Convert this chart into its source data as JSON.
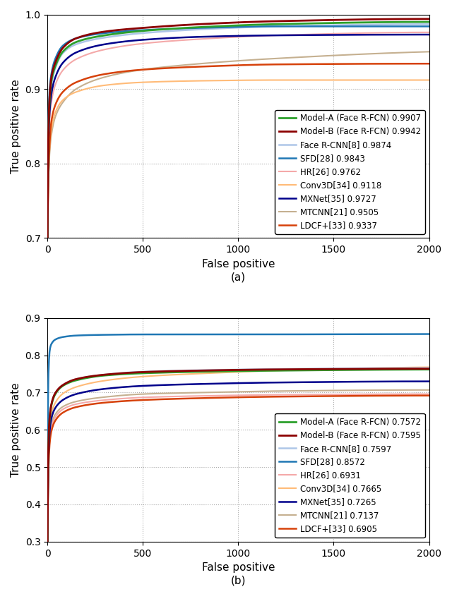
{
  "fig_width": 6.4,
  "fig_height": 8.42,
  "dpi": 100,
  "plot_a": {
    "xlim": [
      0,
      2000
    ],
    "ylim": [
      0.7,
      1.0
    ],
    "xlabel": "False positive",
    "ylabel": "True positive rate",
    "yticks": [
      0.7,
      0.8,
      0.9,
      1.0
    ],
    "xticks": [
      0,
      500,
      1000,
      1500,
      2000
    ],
    "label_a": "(a)",
    "series": [
      {
        "label": "Model-A (Face R-FCN) 0.9907",
        "color": "#2ca02c",
        "lw": 2.0,
        "zorder": 9,
        "points": [
          [
            0,
            0.7
          ],
          [
            2,
            0.78
          ],
          [
            5,
            0.84
          ],
          [
            10,
            0.88
          ],
          [
            20,
            0.91
          ],
          [
            40,
            0.93
          ],
          [
            80,
            0.95
          ],
          [
            150,
            0.963
          ],
          [
            300,
            0.972
          ],
          [
            500,
            0.978
          ],
          [
            800,
            0.983
          ],
          [
            1200,
            0.987
          ],
          [
            2000,
            0.99
          ]
        ]
      },
      {
        "label": "Model-B (Face R-FCN) 0.9942",
        "color": "#8b0000",
        "lw": 2.0,
        "zorder": 10,
        "points": [
          [
            0,
            0.7
          ],
          [
            2,
            0.78
          ],
          [
            5,
            0.845
          ],
          [
            10,
            0.885
          ],
          [
            20,
            0.915
          ],
          [
            40,
            0.935
          ],
          [
            80,
            0.955
          ],
          [
            150,
            0.968
          ],
          [
            300,
            0.977
          ],
          [
            500,
            0.982
          ],
          [
            800,
            0.987
          ],
          [
            1200,
            0.991
          ],
          [
            2000,
            0.994
          ]
        ]
      },
      {
        "label": "Face R-CNN[8] 0.9874",
        "color": "#aec6e8",
        "lw": 1.8,
        "zorder": 7,
        "points": [
          [
            0,
            0.7
          ],
          [
            2,
            0.78
          ],
          [
            5,
            0.84
          ],
          [
            10,
            0.875
          ],
          [
            20,
            0.905
          ],
          [
            40,
            0.927
          ],
          [
            80,
            0.948
          ],
          [
            150,
            0.96
          ],
          [
            300,
            0.969
          ],
          [
            500,
            0.975
          ],
          [
            800,
            0.98
          ],
          [
            1200,
            0.984
          ],
          [
            2000,
            0.987
          ]
        ]
      },
      {
        "label": "SFD[28] 0.9843",
        "color": "#1f77b4",
        "lw": 1.8,
        "zorder": 8,
        "points": [
          [
            0,
            0.7
          ],
          [
            2,
            0.8
          ],
          [
            5,
            0.86
          ],
          [
            10,
            0.895
          ],
          [
            20,
            0.92
          ],
          [
            40,
            0.94
          ],
          [
            80,
            0.958
          ],
          [
            150,
            0.968
          ],
          [
            300,
            0.975
          ],
          [
            500,
            0.979
          ],
          [
            800,
            0.982
          ],
          [
            1200,
            0.984
          ],
          [
            2000,
            0.984
          ]
        ]
      },
      {
        "label": "HR[26] 0.9762",
        "color": "#f4a9a9",
        "lw": 1.5,
        "zorder": 6,
        "points": [
          [
            0,
            0.7
          ],
          [
            2,
            0.76
          ],
          [
            5,
            0.82
          ],
          [
            10,
            0.855
          ],
          [
            20,
            0.882
          ],
          [
            40,
            0.905
          ],
          [
            80,
            0.925
          ],
          [
            150,
            0.94
          ],
          [
            300,
            0.953
          ],
          [
            500,
            0.961
          ],
          [
            800,
            0.967
          ],
          [
            1200,
            0.972
          ],
          [
            2000,
            0.976
          ]
        ]
      },
      {
        "label": "Conv3D[34] 0.9118",
        "color": "#ffbb78",
        "lw": 1.5,
        "zorder": 5,
        "points": [
          [
            0,
            0.7
          ],
          [
            2,
            0.74
          ],
          [
            5,
            0.78
          ],
          [
            10,
            0.815
          ],
          [
            20,
            0.845
          ],
          [
            40,
            0.868
          ],
          [
            80,
            0.885
          ],
          [
            150,
            0.896
          ],
          [
            300,
            0.905
          ],
          [
            500,
            0.909
          ],
          [
            800,
            0.911
          ],
          [
            1200,
            0.912
          ],
          [
            2000,
            0.912
          ]
        ]
      },
      {
        "label": "MXNet[35] 0.9727",
        "color": "#00008b",
        "lw": 1.8,
        "zorder": 8,
        "points": [
          [
            0,
            0.7
          ],
          [
            2,
            0.77
          ],
          [
            5,
            0.83
          ],
          [
            10,
            0.865
          ],
          [
            20,
            0.893
          ],
          [
            40,
            0.915
          ],
          [
            80,
            0.935
          ],
          [
            150,
            0.949
          ],
          [
            300,
            0.96
          ],
          [
            500,
            0.966
          ],
          [
            800,
            0.97
          ],
          [
            1200,
            0.972
          ],
          [
            2000,
            0.973
          ]
        ]
      },
      {
        "label": "MTCNN[21] 0.9505",
        "color": "#c5b090",
        "lw": 1.5,
        "zorder": 4,
        "points": [
          [
            0,
            0.7
          ],
          [
            2,
            0.74
          ],
          [
            5,
            0.78
          ],
          [
            10,
            0.81
          ],
          [
            20,
            0.838
          ],
          [
            40,
            0.862
          ],
          [
            80,
            0.882
          ],
          [
            150,
            0.9
          ],
          [
            300,
            0.916
          ],
          [
            500,
            0.926
          ],
          [
            800,
            0.934
          ],
          [
            1200,
            0.941
          ],
          [
            2000,
            0.95
          ]
        ]
      },
      {
        "label": "LDCF+[33] 0.9337",
        "color": "#d6410a",
        "lw": 1.8,
        "zorder": 7,
        "points": [
          [
            0,
            0.7
          ],
          [
            2,
            0.74
          ],
          [
            5,
            0.785
          ],
          [
            10,
            0.822
          ],
          [
            20,
            0.856
          ],
          [
            40,
            0.878
          ],
          [
            80,
            0.896
          ],
          [
            150,
            0.909
          ],
          [
            300,
            0.92
          ],
          [
            500,
            0.926
          ],
          [
            800,
            0.93
          ],
          [
            1200,
            0.933
          ],
          [
            2000,
            0.934
          ]
        ]
      }
    ]
  },
  "plot_b": {
    "xlim": [
      0,
      2000
    ],
    "ylim": [
      0.3,
      0.9
    ],
    "xlabel": "False positive",
    "ylabel": "True positive rate",
    "yticks": [
      0.3,
      0.4,
      0.5,
      0.6,
      0.7,
      0.8,
      0.9
    ],
    "xticks": [
      0,
      500,
      1000,
      1500,
      2000
    ],
    "label_b": "(b)",
    "series": [
      {
        "label": "Model-A (Face R-FCN) 0.7572",
        "color": "#2ca02c",
        "lw": 2.0,
        "zorder": 9,
        "points": [
          [
            0,
            0.3
          ],
          [
            2,
            0.45
          ],
          [
            5,
            0.555
          ],
          [
            10,
            0.62
          ],
          [
            20,
            0.665
          ],
          [
            40,
            0.695
          ],
          [
            80,
            0.718
          ],
          [
            150,
            0.733
          ],
          [
            300,
            0.746
          ],
          [
            500,
            0.752
          ],
          [
            800,
            0.756
          ],
          [
            1200,
            0.759
          ],
          [
            2000,
            0.762
          ]
        ]
      },
      {
        "label": "Model-B (Face R-FCN) 0.7595",
        "color": "#8b0000",
        "lw": 2.0,
        "zorder": 10,
        "points": [
          [
            0,
            0.3
          ],
          [
            2,
            0.45
          ],
          [
            5,
            0.558
          ],
          [
            10,
            0.625
          ],
          [
            20,
            0.668
          ],
          [
            40,
            0.698
          ],
          [
            80,
            0.72
          ],
          [
            150,
            0.736
          ],
          [
            300,
            0.748
          ],
          [
            500,
            0.755
          ],
          [
            800,
            0.759
          ],
          [
            1200,
            0.762
          ],
          [
            2000,
            0.764
          ]
        ]
      },
      {
        "label": "Face R-CNN[8] 0.7597",
        "color": "#aec6e8",
        "lw": 1.8,
        "zorder": 7,
        "points": [
          [
            0,
            0.3
          ],
          [
            2,
            0.45
          ],
          [
            5,
            0.558
          ],
          [
            10,
            0.624
          ],
          [
            20,
            0.667
          ],
          [
            40,
            0.697
          ],
          [
            80,
            0.72
          ],
          [
            150,
            0.736
          ],
          [
            300,
            0.748
          ],
          [
            500,
            0.756
          ],
          [
            800,
            0.76
          ],
          [
            1200,
            0.763
          ],
          [
            2000,
            0.766
          ]
        ]
      },
      {
        "label": "SFD[28] 0.8572",
        "color": "#1f77b4",
        "lw": 1.8,
        "zorder": 8,
        "points": [
          [
            0,
            0.3
          ],
          [
            1,
            0.5
          ],
          [
            2,
            0.62
          ],
          [
            3,
            0.69
          ],
          [
            5,
            0.75
          ],
          [
            8,
            0.79
          ],
          [
            12,
            0.815
          ],
          [
            20,
            0.83
          ],
          [
            40,
            0.842
          ],
          [
            80,
            0.849
          ],
          [
            150,
            0.853
          ],
          [
            300,
            0.855
          ],
          [
            500,
            0.856
          ],
          [
            800,
            0.856
          ],
          [
            2000,
            0.857
          ]
        ]
      },
      {
        "label": "HR[26] 0.6931",
        "color": "#f4a9a9",
        "lw": 1.5,
        "zorder": 6,
        "points": [
          [
            0,
            0.3
          ],
          [
            2,
            0.42
          ],
          [
            5,
            0.51
          ],
          [
            10,
            0.565
          ],
          [
            20,
            0.605
          ],
          [
            40,
            0.633
          ],
          [
            80,
            0.655
          ],
          [
            150,
            0.669
          ],
          [
            300,
            0.68
          ],
          [
            500,
            0.687
          ],
          [
            800,
            0.691
          ],
          [
            1200,
            0.694
          ],
          [
            2000,
            0.696
          ]
        ]
      },
      {
        "label": "Conv3D[34] 0.7665",
        "color": "#ffbb78",
        "lw": 1.5,
        "zorder": 5,
        "points": [
          [
            0,
            0.3
          ],
          [
            2,
            0.44
          ],
          [
            5,
            0.535
          ],
          [
            10,
            0.598
          ],
          [
            20,
            0.642
          ],
          [
            40,
            0.672
          ],
          [
            80,
            0.697
          ],
          [
            150,
            0.715
          ],
          [
            300,
            0.732
          ],
          [
            500,
            0.743
          ],
          [
            800,
            0.751
          ],
          [
            1200,
            0.759
          ],
          [
            2000,
            0.768
          ]
        ]
      },
      {
        "label": "MXNet[35] 0.7265",
        "color": "#00008b",
        "lw": 1.8,
        "zorder": 8,
        "points": [
          [
            0,
            0.3
          ],
          [
            2,
            0.43
          ],
          [
            5,
            0.525
          ],
          [
            10,
            0.588
          ],
          [
            20,
            0.63
          ],
          [
            40,
            0.658
          ],
          [
            80,
            0.68
          ],
          [
            150,
            0.696
          ],
          [
            300,
            0.71
          ],
          [
            500,
            0.718
          ],
          [
            800,
            0.723
          ],
          [
            1200,
            0.727
          ],
          [
            2000,
            0.73
          ]
        ]
      },
      {
        "label": "MTCNN[21] 0.7137",
        "color": "#c5b090",
        "lw": 1.5,
        "zorder": 4,
        "points": [
          [
            0,
            0.3
          ],
          [
            2,
            0.42
          ],
          [
            5,
            0.515
          ],
          [
            10,
            0.574
          ],
          [
            20,
            0.614
          ],
          [
            40,
            0.641
          ],
          [
            80,
            0.662
          ],
          [
            150,
            0.676
          ],
          [
            300,
            0.688
          ],
          [
            500,
            0.696
          ],
          [
            800,
            0.7
          ],
          [
            1200,
            0.704
          ],
          [
            2000,
            0.707
          ]
        ]
      },
      {
        "label": "LDCF+[33] 0.6905",
        "color": "#d6410a",
        "lw": 1.8,
        "zorder": 7,
        "points": [
          [
            0,
            0.3
          ],
          [
            2,
            0.41
          ],
          [
            5,
            0.495
          ],
          [
            10,
            0.555
          ],
          [
            20,
            0.596
          ],
          [
            40,
            0.624
          ],
          [
            80,
            0.646
          ],
          [
            150,
            0.661
          ],
          [
            300,
            0.673
          ],
          [
            500,
            0.68
          ],
          [
            800,
            0.685
          ],
          [
            1200,
            0.689
          ],
          [
            2000,
            0.692
          ]
        ]
      }
    ]
  },
  "grid_color": "#aaaaaa",
  "grid_style": ":",
  "grid_lw": 0.8,
  "legend_fontsize": 8.5,
  "axis_fontsize": 11,
  "tick_fontsize": 10,
  "bg_color": "#ffffff"
}
